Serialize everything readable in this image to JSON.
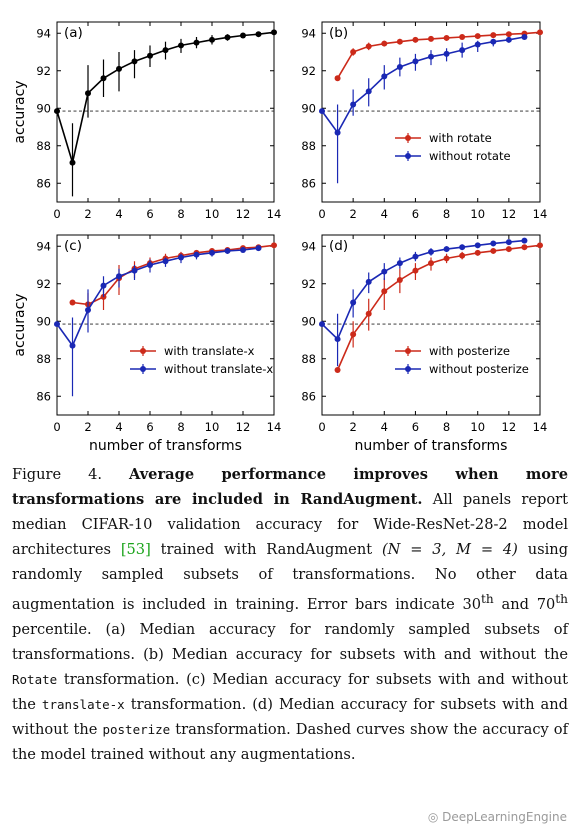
{
  "chart_data": [
    {
      "type": "line",
      "panel_label": "(a)",
      "ylabel": "accuracy",
      "xlabel": "",
      "xlim": [
        0,
        14
      ],
      "ylim": [
        85,
        94.6
      ],
      "xticks": [
        "0",
        "2",
        "4",
        "6",
        "8",
        "10",
        "12",
        "14"
      ],
      "yticks": [
        "86",
        "88",
        "90",
        "92",
        "94"
      ],
      "baseline": 89.85,
      "legend": "none",
      "series": [
        {
          "name": "",
          "color": "#000000",
          "x": [
            0,
            1,
            2,
            3,
            4,
            5,
            6,
            7,
            8,
            9,
            10,
            11,
            12,
            13,
            14
          ],
          "y": [
            89.85,
            87.1,
            90.8,
            91.6,
            92.1,
            92.5,
            92.8,
            93.1,
            93.35,
            93.5,
            93.65,
            93.78,
            93.88,
            93.95,
            94.05
          ],
          "lo": [
            89.85,
            85.3,
            89.5,
            90.6,
            90.9,
            91.6,
            92.2,
            92.6,
            92.95,
            93.2,
            93.4,
            93.6,
            93.75,
            93.85,
            94.0
          ],
          "hi": [
            89.85,
            89.2,
            92.3,
            92.6,
            93.0,
            93.1,
            93.35,
            93.55,
            93.7,
            93.8,
            93.9,
            93.95,
            94.0,
            94.05,
            94.1
          ]
        }
      ]
    },
    {
      "type": "line",
      "panel_label": "(b)",
      "ylabel": "",
      "xlabel": "",
      "xlim": [
        0,
        14
      ],
      "ylim": [
        85,
        94.6
      ],
      "xticks": [
        "0",
        "2",
        "4",
        "6",
        "8",
        "10",
        "12",
        "14"
      ],
      "yticks": [
        "86",
        "88",
        "90",
        "92",
        "94"
      ],
      "baseline": 89.85,
      "legend": "center-right",
      "series": [
        {
          "name": "with rotate",
          "color": "#cc2a1a",
          "x": [
            1,
            2,
            3,
            4,
            5,
            6,
            7,
            8,
            9,
            10,
            11,
            12,
            13,
            14
          ],
          "y": [
            91.6,
            93.0,
            93.3,
            93.45,
            93.55,
            93.65,
            93.7,
            93.75,
            93.8,
            93.85,
            93.9,
            93.95,
            93.98,
            94.05
          ],
          "lo": [
            91.6,
            92.8,
            93.1,
            93.3,
            93.4,
            93.55,
            93.6,
            93.65,
            93.7,
            93.8,
            93.85,
            93.9,
            93.95,
            94.0
          ],
          "hi": [
            91.6,
            93.2,
            93.5,
            93.6,
            93.7,
            93.75,
            93.8,
            93.85,
            93.9,
            93.95,
            94.0,
            94.0,
            94.02,
            94.08
          ]
        },
        {
          "name": "without rotate",
          "color": "#1a28b4",
          "x": [
            0,
            1,
            2,
            3,
            4,
            5,
            6,
            7,
            8,
            9,
            10,
            11,
            12,
            13
          ],
          "y": [
            89.85,
            88.7,
            90.2,
            90.9,
            91.7,
            92.2,
            92.5,
            92.75,
            92.9,
            93.1,
            93.4,
            93.55,
            93.65,
            93.8
          ],
          "lo": [
            89.85,
            86.0,
            89.6,
            90.1,
            91.0,
            91.7,
            92.0,
            92.3,
            92.5,
            92.7,
            93.0,
            93.3,
            93.5,
            93.7
          ],
          "hi": [
            89.85,
            90.2,
            91.0,
            91.6,
            92.3,
            92.7,
            92.9,
            93.1,
            93.2,
            93.5,
            93.6,
            93.7,
            93.75,
            93.9
          ]
        }
      ]
    },
    {
      "type": "line",
      "panel_label": "(c)",
      "ylabel": "accuracy",
      "xlabel": "number of transforms",
      "xlim": [
        0,
        14
      ],
      "ylim": [
        85,
        94.6
      ],
      "xticks": [
        "0",
        "2",
        "4",
        "6",
        "8",
        "10",
        "12",
        "14"
      ],
      "yticks": [
        "86",
        "88",
        "90",
        "92",
        "94"
      ],
      "baseline": 89.85,
      "legend": "lower-right",
      "series": [
        {
          "name": "with translate-x",
          "color": "#cc2a1a",
          "x": [
            1,
            2,
            3,
            4,
            5,
            6,
            7,
            8,
            9,
            10,
            11,
            12,
            13,
            14
          ],
          "y": [
            91.0,
            90.9,
            91.3,
            92.3,
            92.8,
            93.1,
            93.35,
            93.5,
            93.65,
            93.75,
            93.8,
            93.9,
            93.95,
            94.05
          ],
          "lo": [
            91.0,
            90.4,
            90.6,
            91.4,
            92.3,
            92.8,
            93.1,
            93.3,
            93.5,
            93.6,
            93.7,
            93.8,
            93.9,
            94.0
          ],
          "hi": [
            91.0,
            91.5,
            92.0,
            93.0,
            93.2,
            93.4,
            93.6,
            93.7,
            93.8,
            93.85,
            93.9,
            93.95,
            94.0,
            94.1
          ]
        },
        {
          "name": "without translate-x",
          "color": "#1a28b4",
          "x": [
            0,
            1,
            2,
            3,
            4,
            5,
            6,
            7,
            8,
            9,
            10,
            11,
            12,
            13
          ],
          "y": [
            89.85,
            88.7,
            90.6,
            91.9,
            92.4,
            92.7,
            93.0,
            93.2,
            93.4,
            93.55,
            93.65,
            93.75,
            93.8,
            93.9
          ],
          "lo": [
            89.85,
            86.0,
            89.4,
            91.3,
            91.8,
            92.2,
            92.6,
            92.9,
            93.1,
            93.3,
            93.45,
            93.6,
            93.7,
            93.8
          ],
          "hi": [
            89.85,
            90.2,
            91.7,
            92.4,
            92.8,
            93.0,
            93.3,
            93.4,
            93.6,
            93.7,
            93.8,
            93.85,
            93.9,
            94.0
          ]
        }
      ]
    },
    {
      "type": "line",
      "panel_label": "(d)",
      "ylabel": "",
      "xlabel": "number of transforms",
      "xlim": [
        0,
        14
      ],
      "ylim": [
        85,
        94.6
      ],
      "xticks": [
        "0",
        "2",
        "4",
        "6",
        "8",
        "10",
        "12",
        "14"
      ],
      "yticks": [
        "86",
        "88",
        "90",
        "92",
        "94"
      ],
      "baseline": 89.85,
      "legend": "lower-right",
      "series": [
        {
          "name": "with posterize",
          "color": "#cc2a1a",
          "x": [
            1,
            2,
            3,
            4,
            5,
            6,
            7,
            8,
            9,
            10,
            11,
            12,
            13,
            14
          ],
          "y": [
            87.4,
            89.3,
            90.4,
            91.6,
            92.2,
            92.7,
            93.1,
            93.35,
            93.5,
            93.65,
            93.75,
            93.85,
            93.95,
            94.05
          ],
          "lo": [
            87.4,
            88.6,
            89.5,
            90.6,
            91.5,
            92.2,
            92.7,
            93.1,
            93.3,
            93.5,
            93.65,
            93.75,
            93.9,
            94.0
          ],
          "hi": [
            87.4,
            90.0,
            91.2,
            92.3,
            92.8,
            93.1,
            93.4,
            93.6,
            93.7,
            93.8,
            93.85,
            93.95,
            94.0,
            94.1
          ]
        },
        {
          "name": "without posterize",
          "color": "#1a28b4",
          "x": [
            0,
            1,
            2,
            3,
            4,
            5,
            6,
            7,
            8,
            9,
            10,
            11,
            12,
            13
          ],
          "y": [
            89.85,
            89.05,
            91.0,
            92.1,
            92.65,
            93.1,
            93.45,
            93.7,
            93.85,
            93.95,
            94.05,
            94.15,
            94.22,
            94.3
          ],
          "lo": [
            89.85,
            87.6,
            90.2,
            91.5,
            92.2,
            92.8,
            93.2,
            93.5,
            93.7,
            93.85,
            93.95,
            94.05,
            94.15,
            94.25
          ],
          "hi": [
            89.85,
            90.4,
            91.7,
            92.6,
            93.1,
            93.4,
            93.7,
            93.9,
            94.0,
            94.1,
            94.15,
            94.22,
            94.3,
            94.35
          ]
        }
      ]
    }
  ],
  "caption": {
    "figure_label": "Figure 4.",
    "bold_title": "Average performance improves when more transformations are included in RandAugment.",
    "text_1": "All panels report median CIFAR-10 validation accuracy for Wide-ResNet-28-2 model architectures",
    "cite": "[53]",
    "text_2": "trained with RandAugment",
    "params": "(N = 3, M = 4)",
    "text_3": "using randomly sampled subsets of transformations. No other data augmentation is included in training. Error bars indicate 30",
    "sup_1": "th",
    "text_4": "and 70",
    "sup_2": "th",
    "text_5": "percentile. (a) Median accuracy for randomly sampled subsets of transformations. (b) Median accuracy for subsets with and without the",
    "code_1": "Rotate",
    "text_6": "transformation. (c) Median accuracy for subsets with and without the",
    "code_2": "translate-x",
    "text_7": "transformation. (d) Median accuracy for subsets with and without the",
    "code_3": "posterize",
    "text_8": "transformation. Dashed curves show the accuracy of the model trained without any augmentations."
  },
  "watermark": "DeepLearningEngine"
}
